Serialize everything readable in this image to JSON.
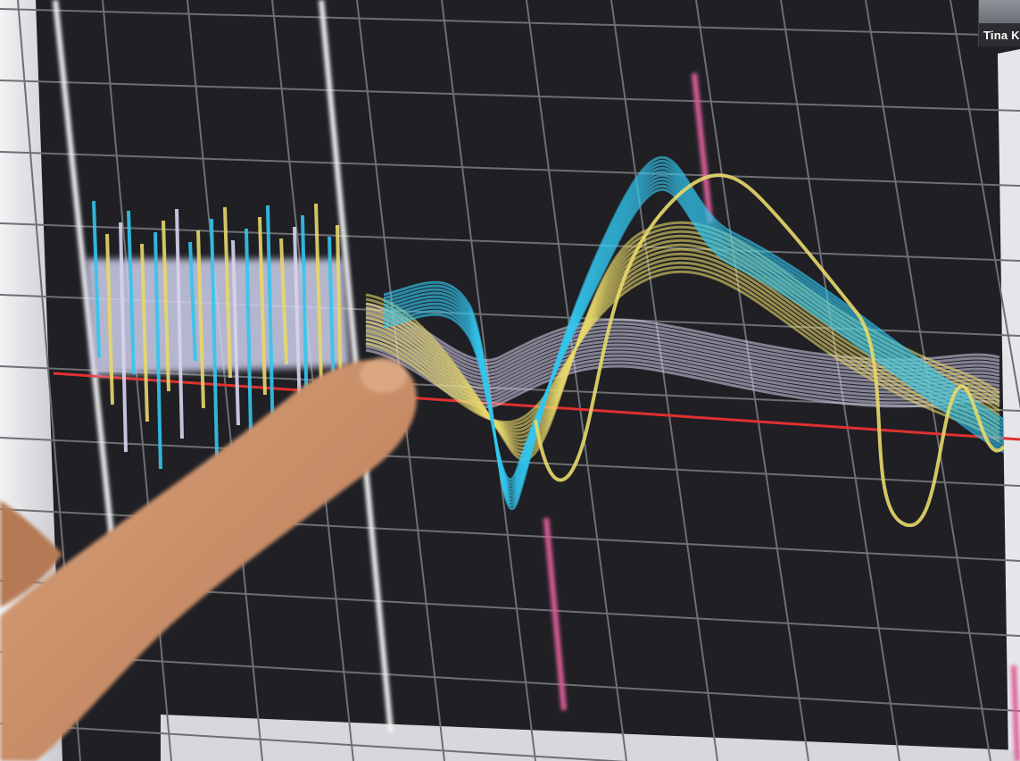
{
  "video": {
    "participant_name": "Tina K"
  },
  "trace_colors": {
    "cyan": "#33c6ee",
    "yellow": "#e8d86a",
    "lavender": "#d8d4ee",
    "baseline": "#e03030",
    "cursor": "#e0609a",
    "gridline": "#6d6f73"
  },
  "icons": [
    "finger-pointer"
  ]
}
